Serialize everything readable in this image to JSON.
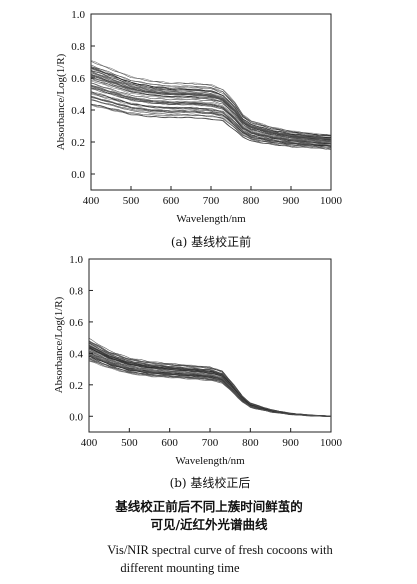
{
  "chart_data": [
    {
      "id": "a",
      "type": "line",
      "xlabel": "Wavelength/nm",
      "ylabel": "Absorbance/Log(1/R)",
      "xlim": [
        400,
        1000
      ],
      "ylim": [
        -0.1,
        1.0
      ],
      "xticks": [
        400,
        500,
        600,
        700,
        800,
        900,
        1000
      ],
      "yticks": [
        0.0,
        0.2,
        0.4,
        0.6,
        0.8,
        1.0
      ],
      "grid": false,
      "legend": "none",
      "caption": "(a) 基线校正前",
      "profile": {
        "x": [
          400,
          450,
          500,
          550,
          600,
          650,
          700,
          730,
          760,
          780,
          800,
          850,
          900,
          950,
          1000
        ],
        "mean_y": [
          0.57,
          0.53,
          0.49,
          0.47,
          0.46,
          0.46,
          0.45,
          0.43,
          0.36,
          0.3,
          0.27,
          0.24,
          0.22,
          0.21,
          0.2
        ],
        "spread_y": [
          0.14,
          0.13,
          0.12,
          0.115,
          0.11,
          0.11,
          0.11,
          0.1,
          0.09,
          0.07,
          0.065,
          0.055,
          0.05,
          0.045,
          0.045
        ]
      },
      "n_curves": 60
    },
    {
      "id": "b",
      "type": "line",
      "xlabel": "Wavelength/nm",
      "ylabel": "Absorbance/Log(1/R)",
      "xlim": [
        400,
        1000
      ],
      "ylim": [
        -0.1,
        1.0
      ],
      "xticks": [
        400,
        500,
        600,
        700,
        800,
        900,
        1000
      ],
      "yticks": [
        0.0,
        0.2,
        0.4,
        0.6,
        0.8,
        1.0
      ],
      "grid": false,
      "legend": "none",
      "caption": "(b) 基线校正后",
      "profile": {
        "x": [
          400,
          450,
          500,
          550,
          600,
          650,
          700,
          730,
          760,
          780,
          800,
          850,
          900,
          950,
          1000
        ],
        "mean_y": [
          0.42,
          0.36,
          0.32,
          0.3,
          0.29,
          0.28,
          0.27,
          0.25,
          0.17,
          0.11,
          0.07,
          0.035,
          0.015,
          0.005,
          0.0
        ],
        "spread_y": [
          0.07,
          0.055,
          0.05,
          0.048,
          0.046,
          0.045,
          0.045,
          0.04,
          0.03,
          0.02,
          0.015,
          0.008,
          0.004,
          0.002,
          0.0
        ]
      },
      "n_curves": 60
    }
  ],
  "caption": {
    "zh_line1": "基线校正前后不同上蔟时间鲜茧的",
    "zh_line2": "可见/近红外光谱曲线",
    "en_line1": "Vis/NIR spectral curve of fresh cocoons with",
    "en_line2": "different mounting time"
  }
}
